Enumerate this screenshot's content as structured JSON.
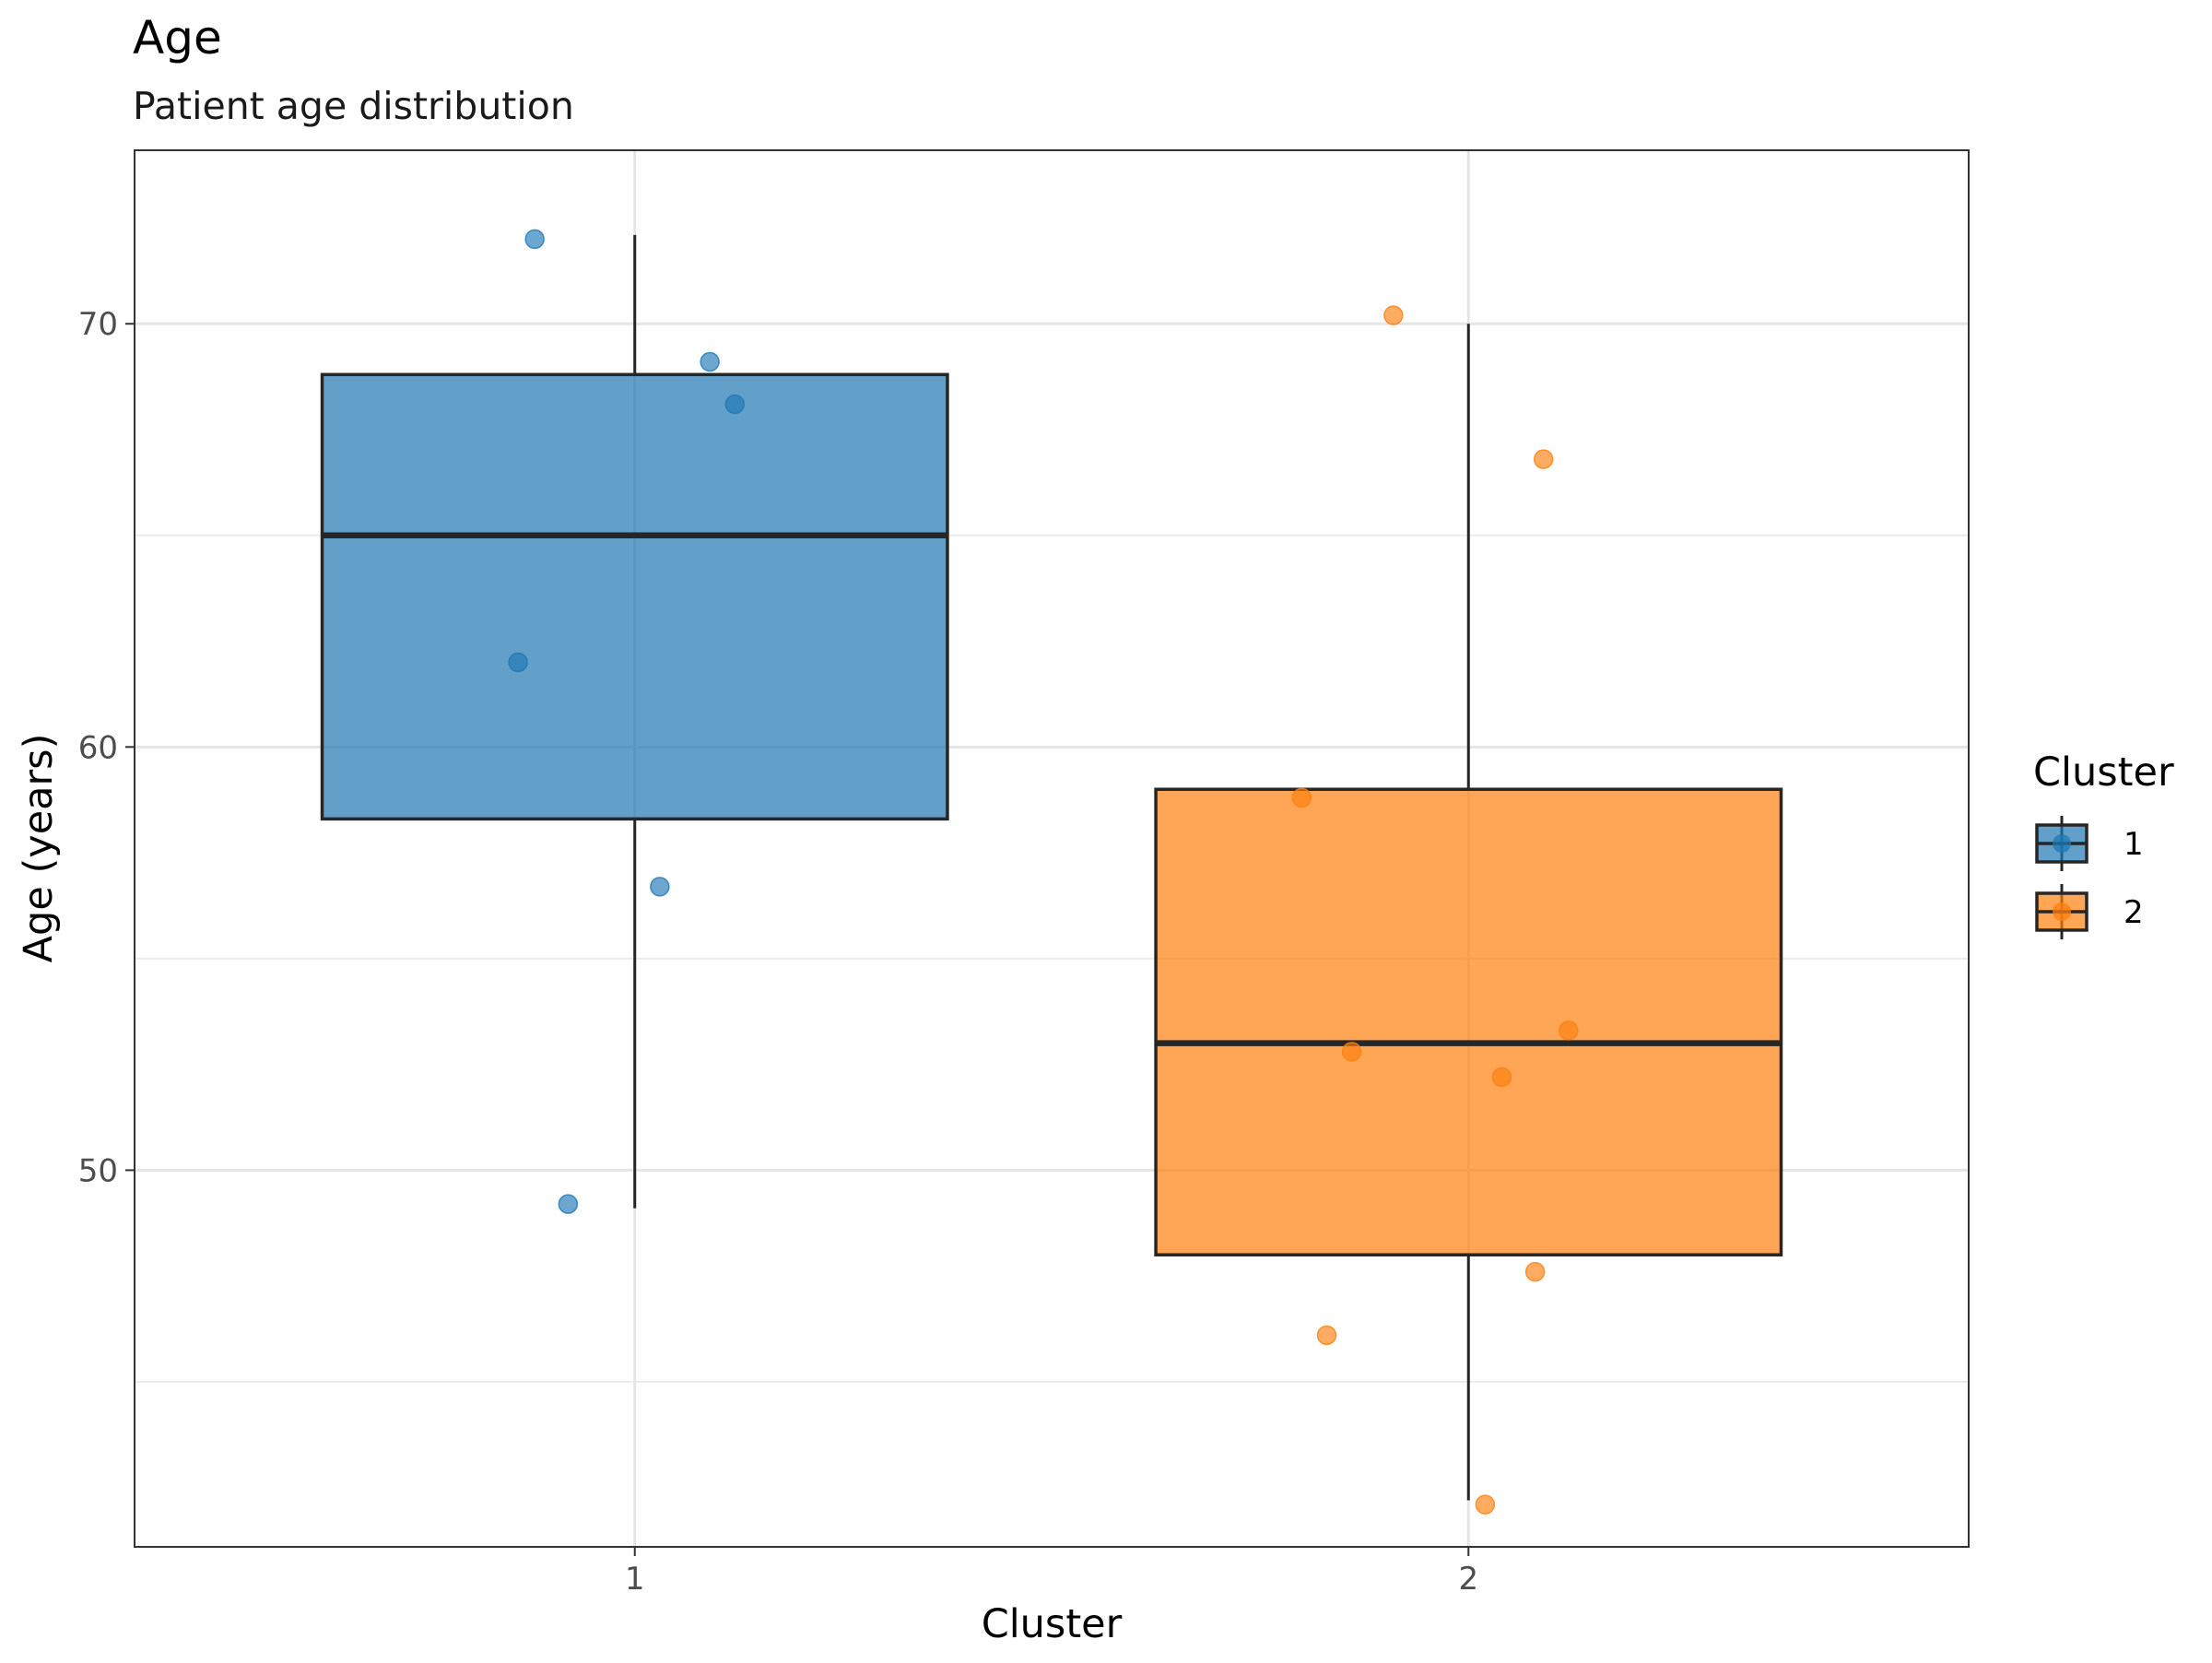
{
  "chart_data": {
    "type": "box",
    "title": "Age",
    "subtitle": "Patient age distribution",
    "xlabel": "Cluster",
    "ylabel": "Age (years)",
    "categories": [
      "1",
      "2"
    ],
    "ylim": [
      41.1,
      74.1
    ],
    "y_ticks": [
      50,
      60,
      70
    ],
    "grid": true,
    "legend": {
      "title": "Cluster",
      "position": "right",
      "entries": [
        "1",
        "2"
      ]
    },
    "series": [
      {
        "name": "1",
        "color": "#1f77b4",
        "box": {
          "whisker_low": 49.1,
          "q1": 58.3,
          "median": 65.0,
          "q3": 68.8,
          "whisker_high": 72.1
        },
        "points": [
          {
            "x_jitter": -0.12,
            "y": 72.0
          },
          {
            "x_jitter": 0.09,
            "y": 69.1
          },
          {
            "x_jitter": 0.12,
            "y": 68.1
          },
          {
            "x_jitter": -0.14,
            "y": 62.0
          },
          {
            "x_jitter": 0.03,
            "y": 56.7
          },
          {
            "x_jitter": -0.08,
            "y": 49.2
          }
        ]
      },
      {
        "name": "2",
        "color": "#ff7f0e",
        "box": {
          "whisker_low": 42.2,
          "q1": 48.0,
          "median": 53.0,
          "q3": 59.0,
          "whisker_high": 70.0
        },
        "points": [
          {
            "x_jitter": -0.09,
            "y": 70.2
          },
          {
            "x_jitter": 0.09,
            "y": 66.8
          },
          {
            "x_jitter": -0.2,
            "y": 58.8
          },
          {
            "x_jitter": 0.12,
            "y": 53.3
          },
          {
            "x_jitter": -0.14,
            "y": 52.8
          },
          {
            "x_jitter": 0.04,
            "y": 52.2
          },
          {
            "x_jitter": 0.08,
            "y": 47.6
          },
          {
            "x_jitter": -0.17,
            "y": 46.1
          },
          {
            "x_jitter": 0.02,
            "y": 42.1
          }
        ]
      }
    ]
  }
}
